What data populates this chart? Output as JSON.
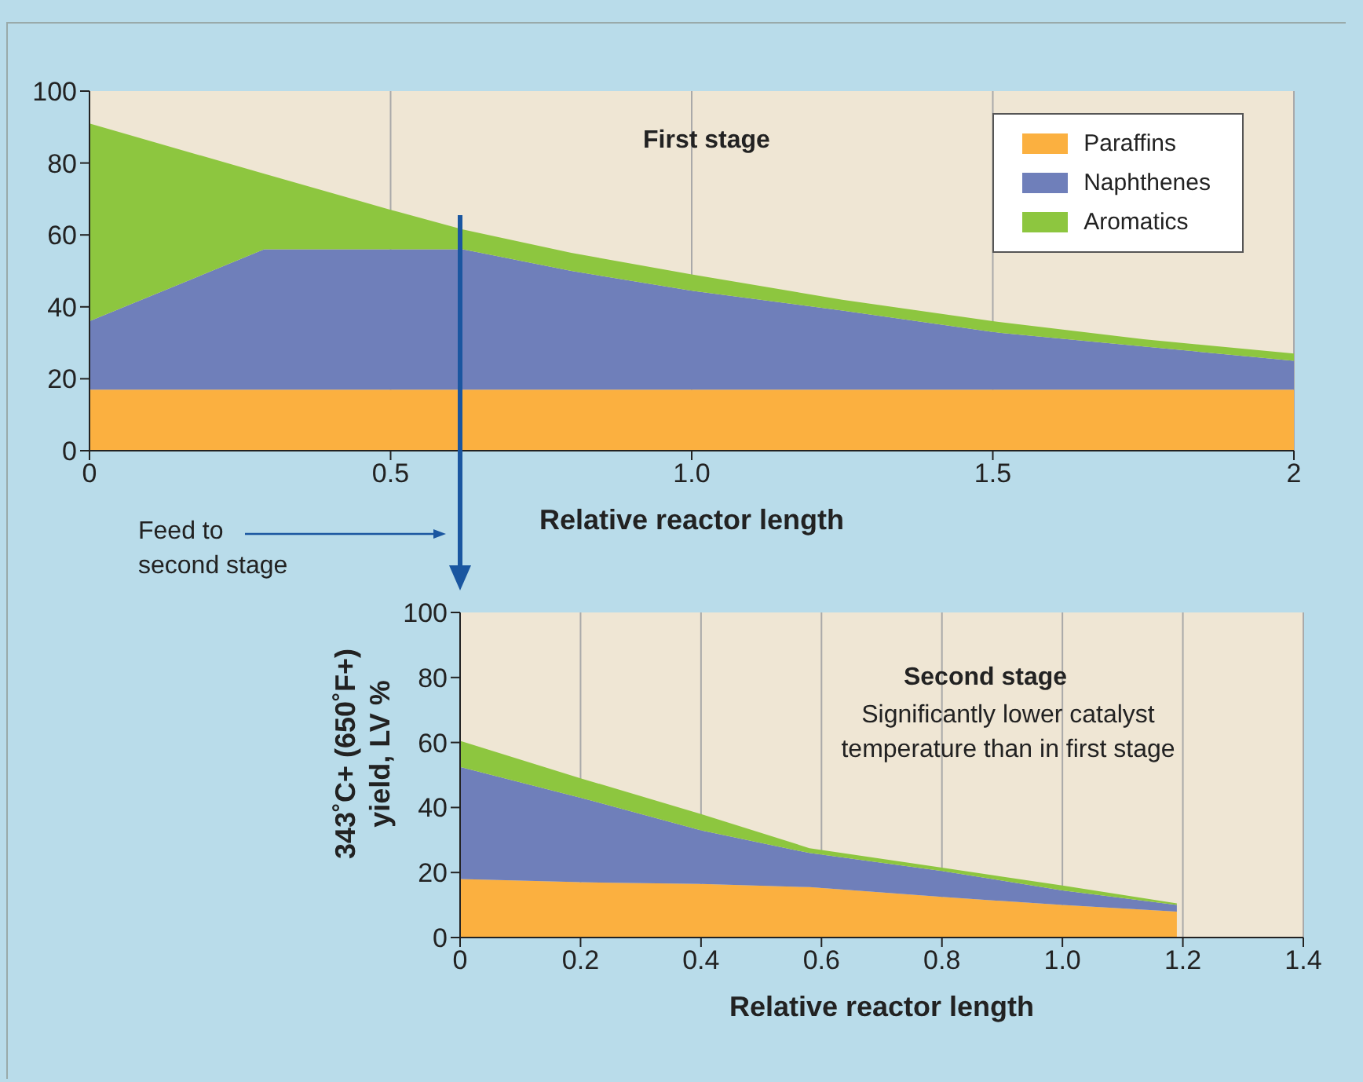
{
  "chart_data": [
    {
      "type": "area",
      "stacked": true,
      "xlabel": "Relative reactor length",
      "annotations": [
        "First stage",
        "Feed to second stage"
      ],
      "x": [
        0,
        0.29,
        0.5,
        0.62,
        0.8,
        1.0,
        1.25,
        1.5,
        1.75,
        2
      ],
      "xlim": [
        0,
        2
      ],
      "xticks": [
        0,
        0.5,
        {
          "value": 1,
          "label": "1.0"
        },
        1.5,
        2
      ],
      "ylim": [
        0,
        100
      ],
      "yticks": [
        0,
        20,
        40,
        60,
        80,
        100
      ],
      "grid": "x",
      "legend": "top right",
      "series": [
        {
          "name": "Paraffins",
          "color": "#fbb040",
          "values": [
            17,
            17,
            17,
            17,
            17,
            17,
            17,
            17,
            17,
            17
          ]
        },
        {
          "name": "Naphthenes",
          "color": "#6f7fba",
          "values": [
            19,
            39,
            39,
            39,
            33,
            27.5,
            22,
            16,
            12,
            8
          ]
        },
        {
          "name": "Aromatics",
          "color": "#8dc63f",
          "values": [
            55,
            21,
            11,
            5.5,
            5,
            4.5,
            3,
            3,
            2,
            2
          ]
        }
      ]
    },
    {
      "type": "area",
      "stacked": true,
      "xlabel": "Relative reactor length",
      "ylabel": "343˚C+ (650˚F+) yield, LV %",
      "annotations": [
        "Second stage",
        "Significantly lower catalyst temperature than in first stage"
      ],
      "x": [
        0,
        0.2,
        0.4,
        0.58,
        0.8,
        1.0,
        1.19
      ],
      "xlim": [
        0,
        1.4
      ],
      "xticks": [
        0,
        0.2,
        0.4,
        0.6,
        0.8,
        {
          "value": 1,
          "label": "1.0"
        },
        1.2,
        1.4
      ],
      "ylim": [
        0,
        100
      ],
      "yticks": [
        0,
        20,
        40,
        60,
        80,
        100
      ],
      "grid": "x",
      "series": [
        {
          "color": "#fbb040",
          "values": [
            18,
            17,
            16.5,
            15.5,
            12.5,
            10,
            8
          ]
        },
        {
          "color": "#6f7fba",
          "values": [
            34.5,
            26,
            16.5,
            10.5,
            8,
            4.5,
            2
          ]
        },
        {
          "color": "#8dc63f",
          "values": [
            8,
            6,
            5,
            1.5,
            1,
            1.5,
            0.5
          ]
        }
      ]
    }
  ]
}
